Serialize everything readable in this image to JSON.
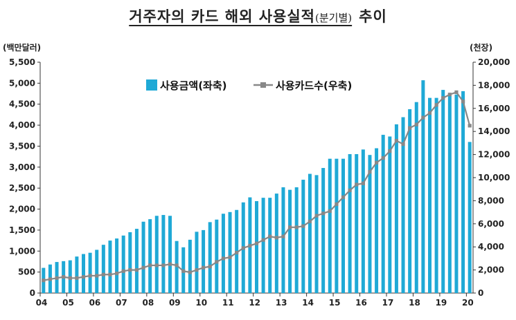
{
  "title_main": "거주자의 카드 해외 사용실적",
  "title_sub": "(분기별)",
  "title_tail": "추이",
  "chart_data": {
    "type": "bar",
    "title": "거주자의 카드 해외 사용실적(분기별) 추이",
    "left_unit": "(백만달러)",
    "right_unit": "(천장)",
    "left_ylim": [
      0,
      5500
    ],
    "right_ylim": [
      0,
      20000
    ],
    "left_ticks": [
      "0",
      "500",
      "1,000",
      "1,500",
      "2,000",
      "2,500",
      "3,000",
      "3,500",
      "4,000",
      "4,500",
      "5,000",
      "5,500"
    ],
    "right_ticks": [
      "0",
      "2,000",
      "4,000",
      "6,000",
      "8,000",
      "10,000",
      "12,000",
      "14,000",
      "16,000",
      "18,000",
      "20,000"
    ],
    "year_labels": [
      "04",
      "05",
      "06",
      "07",
      "08",
      "09",
      "10",
      "11",
      "12",
      "13",
      "14",
      "15",
      "16",
      "17",
      "18",
      "19",
      "20"
    ],
    "legend_position": "top-left",
    "grid": false,
    "series": [
      {
        "name": "사용금액(좌축)",
        "type": "bar",
        "color": "#1fa9d6",
        "axis": "left",
        "values": [
          600,
          680,
          740,
          760,
          780,
          870,
          930,
          960,
          1030,
          1150,
          1250,
          1300,
          1370,
          1450,
          1530,
          1700,
          1760,
          1840,
          1860,
          1840,
          1240,
          1090,
          1270,
          1460,
          1500,
          1690,
          1750,
          1890,
          1930,
          1980,
          2160,
          2280,
          2190,
          2270,
          2270,
          2370,
          2520,
          2460,
          2520,
          2700,
          2840,
          2810,
          2980,
          3200,
          3200,
          3200,
          3310,
          3310,
          3420,
          3290,
          3450,
          3770,
          3730,
          4020,
          4190,
          4380,
          4550,
          5070,
          4650,
          4650,
          4840,
          4700,
          4730,
          4810,
          3600
        ]
      },
      {
        "name": "사용카드수(우축)",
        "type": "line",
        "color": "#888888",
        "axis": "right",
        "values": [
          1100,
          1200,
          1300,
          1400,
          1300,
          1300,
          1400,
          1500,
          1500,
          1600,
          1600,
          1700,
          1900,
          2000,
          2000,
          2200,
          2400,
          2400,
          2400,
          2500,
          2400,
          1900,
          1800,
          2000,
          2200,
          2300,
          2700,
          3000,
          3100,
          3500,
          3900,
          4100,
          4300,
          4600,
          4900,
          4800,
          4900,
          5700,
          5700,
          5800,
          6200,
          6700,
          6900,
          7100,
          7700,
          8300,
          8900,
          9400,
          9500,
          10500,
          11300,
          11700,
          12300,
          13200,
          12900,
          14300,
          14600,
          15200,
          15600,
          16300,
          16900,
          17200,
          17400,
          16600,
          14500
        ]
      }
    ]
  }
}
